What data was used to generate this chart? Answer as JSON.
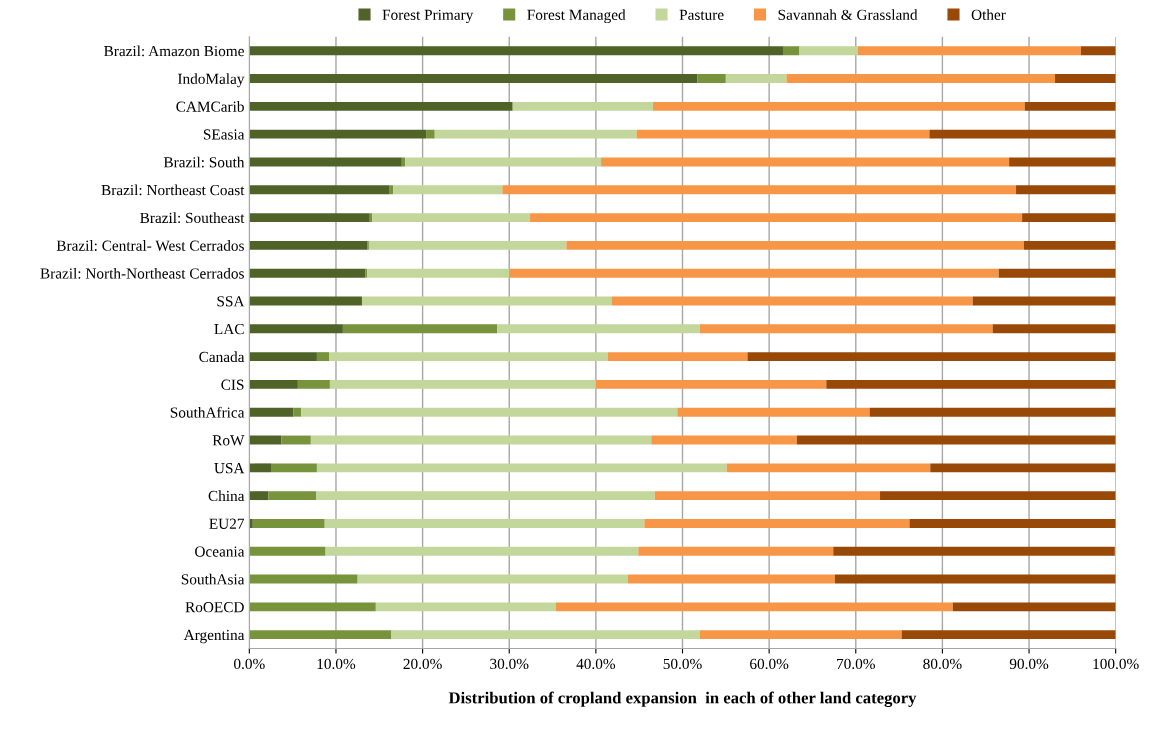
{
  "chart_data": {
    "type": "bar",
    "orientation": "horizontal",
    "stacked": true,
    "xlabel": "Distribution of cropland expansion  in each of other land category",
    "categories": [
      "Brazil: Amazon Biome",
      "IndoMalay",
      "CAMCarib",
      "SEasia",
      "Brazil: South",
      "Brazil: Northeast Coast",
      "Brazil: Southeast",
      "Brazil: Central- West Cerrados",
      "Brazil: North-Northeast Cerrados",
      "SSA",
      "LAC",
      "Canada",
      "CIS",
      "SouthAfrica",
      "RoW",
      "USA",
      "China",
      "EU27",
      "Oceania",
      "SouthAsia",
      "RoOECD",
      "Argentina"
    ],
    "series": [
      {
        "name": "Forest Primary",
        "color": "#4f6228",
        "values": [
          61.6,
          51.7,
          30.4,
          20.4,
          17.6,
          16.2,
          13.9,
          13.6,
          13.4,
          13.0,
          10.8,
          7.8,
          5.6,
          5.1,
          3.7,
          2.5,
          2.2,
          0.4,
          0,
          0,
          0,
          0
        ]
      },
      {
        "name": "Forest Managed",
        "color": "#77933c",
        "values": [
          1.9,
          3.3,
          0,
          1.0,
          0.4,
          0.4,
          0.3,
          0.2,
          0.2,
          0,
          17.8,
          1.4,
          3.7,
          0.9,
          3.4,
          5.3,
          5.5,
          8.3,
          8.8,
          12.5,
          14.6,
          16.4
        ]
      },
      {
        "name": "Pasture",
        "color": "#c3d69b",
        "values": [
          6.7,
          7.0,
          16.2,
          23.3,
          22.6,
          12.6,
          18.2,
          22.8,
          16.4,
          28.8,
          23.4,
          32.2,
          30.7,
          43.4,
          39.3,
          47.3,
          39.1,
          36.9,
          36.1,
          31.2,
          20.8,
          35.6
        ]
      },
      {
        "name": "Savannah & Grassland",
        "color": "#f79646",
        "values": [
          25.8,
          31.0,
          42.9,
          33.8,
          47.1,
          59.3,
          56.8,
          52.8,
          56.5,
          41.7,
          33.8,
          16.1,
          26.6,
          22.2,
          16.8,
          23.5,
          26.0,
          30.6,
          22.5,
          23.9,
          45.8,
          23.3
        ]
      },
      {
        "name": "Other",
        "color": "#984807",
        "values": [
          4.0,
          7.0,
          10.5,
          21.5,
          12.3,
          11.5,
          10.8,
          10.6,
          13.5,
          16.5,
          14.2,
          42.5,
          33.4,
          28.4,
          36.8,
          21.4,
          27.2,
          23.8,
          32.5,
          32.4,
          18.8,
          24.7
        ]
      }
    ],
    "xlim": [
      0,
      100
    ],
    "xticks": [
      {
        "value": 0,
        "label": "0.0%"
      },
      {
        "value": 10,
        "label": "10.0%"
      },
      {
        "value": 20,
        "label": "20.0%"
      },
      {
        "value": 30,
        "label": "30.0%"
      },
      {
        "value": 40,
        "label": "40.0%"
      },
      {
        "value": 50,
        "label": "50.0%"
      },
      {
        "value": 60,
        "label": "60.0%"
      },
      {
        "value": 70,
        "label": "70.0%"
      },
      {
        "value": 80,
        "label": "80.0%"
      },
      {
        "value": 90,
        "label": "90.0%"
      },
      {
        "value": 100,
        "label": "100.0%"
      }
    ],
    "grid": "x",
    "legend": "top"
  }
}
